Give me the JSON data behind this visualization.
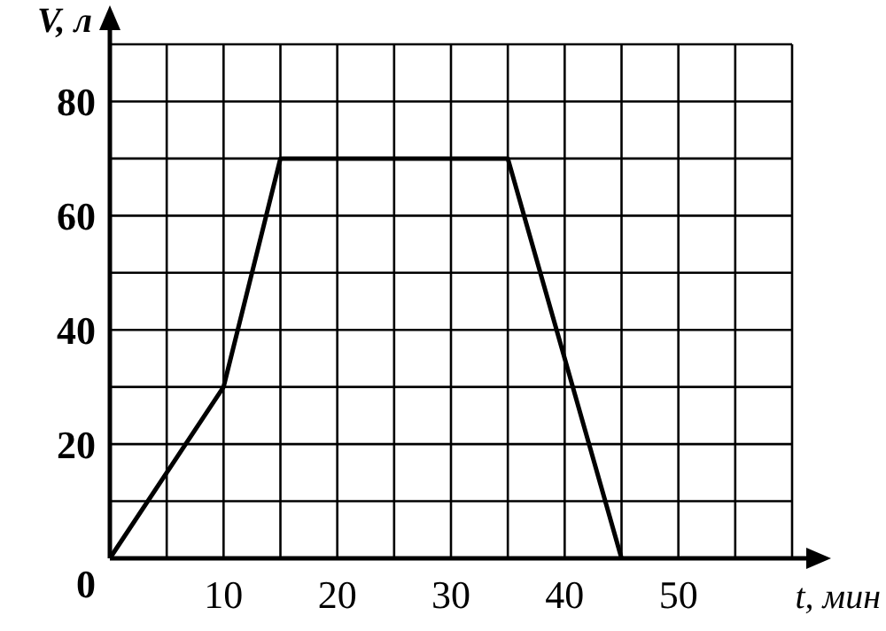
{
  "chart_data": {
    "type": "line",
    "xlabel": "t, мин",
    "ylabel": "V, л",
    "x": [
      0,
      10,
      15,
      35,
      45
    ],
    "values": [
      0,
      30,
      70,
      70,
      0
    ],
    "color": "#000000",
    "marker": "none",
    "line_style": "solid",
    "grid": true,
    "xlim": [
      0,
      60
    ],
    "xticks": [
      {
        "value": 0,
        "label": null
      },
      {
        "value": 5,
        "label": null
      },
      10,
      {
        "value": 15,
        "label": null
      },
      20,
      {
        "value": 25,
        "label": null
      },
      30,
      {
        "value": 35,
        "label": null
      },
      40,
      {
        "value": 45,
        "label": null
      },
      50,
      {
        "value": 55,
        "label": null
      },
      {
        "value": 60,
        "label": null
      }
    ],
    "ylim": [
      0,
      90
    ],
    "yticks": [
      0,
      {
        "value": 10,
        "label": null
      },
      20,
      {
        "value": 30,
        "label": null
      },
      40,
      {
        "value": 50,
        "label": null
      },
      60,
      {
        "value": 70,
        "label": null
      },
      80,
      {
        "value": 90,
        "label": null
      }
    ]
  }
}
